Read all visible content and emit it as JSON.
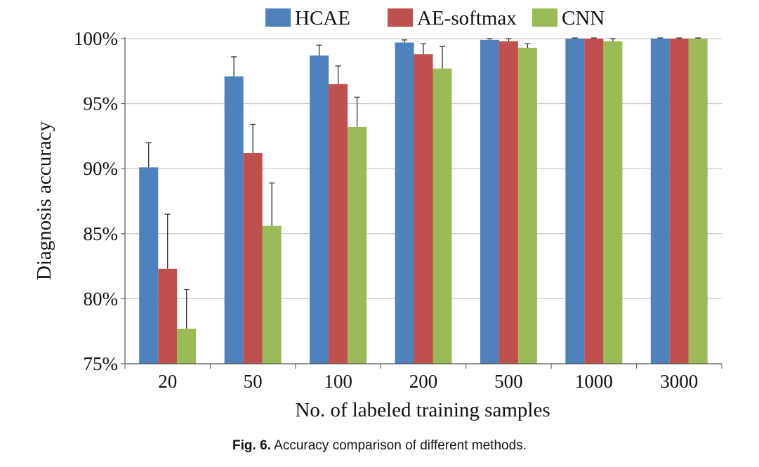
{
  "chart_data": {
    "type": "bar",
    "ylabel": "Diagnosis accuracy",
    "xlabel": "No. of labeled training samples",
    "categories": [
      "20",
      "50",
      "100",
      "200",
      "500",
      "1000",
      "3000"
    ],
    "ylim": [
      75,
      100
    ],
    "yticks": [
      75,
      80,
      85,
      90,
      95,
      100
    ],
    "ytick_labels": [
      "75%",
      "80%",
      "85%",
      "90%",
      "95%",
      "100%"
    ],
    "grid": true,
    "legend_position": "top",
    "series": [
      {
        "name": "HCAE",
        "color": "#4F81BD",
        "values": [
          90.1,
          97.1,
          98.7,
          99.7,
          99.9,
          100.0,
          100.0
        ],
        "errors": [
          1.9,
          1.5,
          0.8,
          0.2,
          0.1,
          0.05,
          0.05
        ]
      },
      {
        "name": "AE-softmax",
        "color": "#C0504D",
        "values": [
          82.3,
          91.2,
          96.5,
          98.8,
          99.8,
          100.0,
          100.0
        ],
        "errors": [
          4.2,
          2.2,
          1.4,
          0.8,
          0.2,
          0.05,
          0.05
        ]
      },
      {
        "name": "CNN",
        "color": "#9BBB59",
        "values": [
          77.7,
          85.6,
          93.2,
          97.7,
          99.3,
          99.8,
          100.0
        ],
        "errors": [
          3.0,
          3.3,
          2.3,
          1.7,
          0.3,
          0.2,
          0.05
        ]
      }
    ]
  },
  "caption": {
    "label": "Fig. 6.",
    "text": "Accuracy comparison of different methods."
  }
}
